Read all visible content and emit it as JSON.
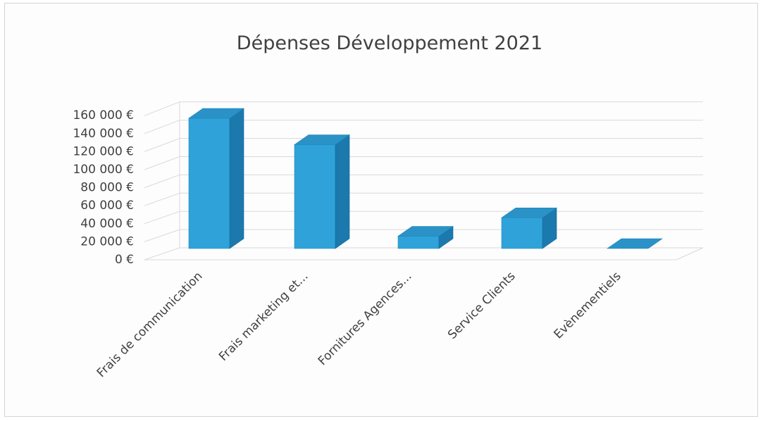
{
  "chart_data": {
    "type": "bar",
    "title": "Dépenses Développement 2021",
    "categories": [
      "Frais de communication",
      "Frais marketing et...",
      "Fornitures Agences...",
      "Service Clients",
      "Evènementiels"
    ],
    "values": [
      148000,
      118000,
      14000,
      35000,
      0
    ],
    "ylim": [
      0,
      160000
    ],
    "y_ticks": [
      "0 €",
      "20 000 €",
      "40 000 €",
      "60 000 €",
      "80 000 €",
      "100 000 €",
      "120 000 €",
      "140 000 €",
      "160 000 €"
    ],
    "grid": true,
    "three_d": true,
    "bar_color": "#2e9fd6"
  }
}
